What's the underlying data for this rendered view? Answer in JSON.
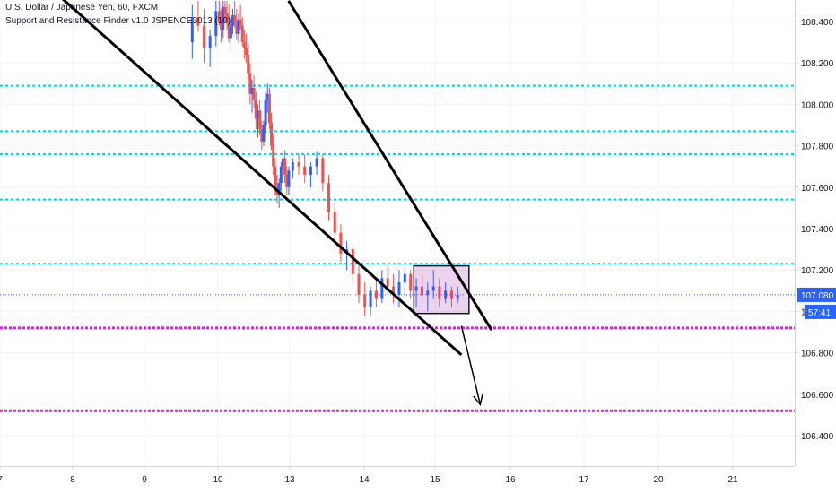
{
  "header": {
    "symbol_text": "U.S. Dollar / Japanese Yen, 60, FXCM",
    "indicator_text": "Support and Resistance Finder v1.0 JSPENCE3013 (10)"
  },
  "chart_data": {
    "type": "candlestick",
    "y_ticks": [
      "106.400",
      "106.600",
      "106.800",
      "107.000",
      "107.200",
      "107.400",
      "107.600",
      "107.800",
      "108.000",
      "108.200",
      "108.400"
    ],
    "ylim": [
      106.3,
      108.5
    ],
    "x_ticks": [
      {
        "label": "7",
        "day": 7
      },
      {
        "label": "8",
        "day": 8
      },
      {
        "label": "9",
        "day": 9
      },
      {
        "label": "10",
        "day": 10
      },
      {
        "label": "13",
        "day": 13
      },
      {
        "label": "14",
        "day": 14
      },
      {
        "label": "15",
        "day": 15
      },
      {
        "label": "16",
        "day": 16
      },
      {
        "label": "17",
        "day": 17
      },
      {
        "label": "20",
        "day": 20
      },
      {
        "label": "21",
        "day": 21
      }
    ],
    "current_price_label": "107.080",
    "countdown_label": "57:41",
    "current_price": 107.08,
    "resistance_levels": [
      108.09,
      107.87,
      107.76,
      107.54,
      107.23
    ],
    "support_levels": [
      106.92,
      106.52
    ],
    "candles_ohlc": [
      [
        108.3,
        108.48,
        108.22,
        108.42
      ],
      [
        108.42,
        108.5,
        108.35,
        108.38
      ],
      [
        108.38,
        108.46,
        108.2,
        108.27
      ],
      [
        108.27,
        108.36,
        108.18,
        108.33
      ],
      [
        108.33,
        108.5,
        108.28,
        108.45
      ],
      [
        108.45,
        108.5,
        108.38,
        108.4
      ],
      [
        108.4,
        108.46,
        108.3,
        108.36
      ],
      [
        108.36,
        108.5,
        108.32,
        108.47
      ],
      [
        108.47,
        108.5,
        108.4,
        108.44
      ],
      [
        108.44,
        108.5,
        108.36,
        108.4
      ],
      [
        108.4,
        108.48,
        108.3,
        108.32
      ],
      [
        108.32,
        108.42,
        108.26,
        108.38
      ],
      [
        108.38,
        108.46,
        108.34,
        108.43
      ],
      [
        108.43,
        108.5,
        108.37,
        108.4
      ],
      [
        108.4,
        108.46,
        108.31,
        108.34
      ],
      [
        108.34,
        108.44,
        108.3,
        108.41
      ],
      [
        108.41,
        108.48,
        108.36,
        108.38
      ],
      [
        108.38,
        108.42,
        108.28,
        108.3
      ],
      [
        108.3,
        108.36,
        108.22,
        108.27
      ],
      [
        108.27,
        108.34,
        108.2,
        108.24
      ],
      [
        108.24,
        108.3,
        108.12,
        108.15
      ],
      [
        108.15,
        108.2,
        108.0,
        108.05
      ],
      [
        108.05,
        108.12,
        107.96,
        108.08
      ],
      [
        108.08,
        108.14,
        107.98,
        108.02
      ],
      [
        108.02,
        108.06,
        107.88,
        107.93
      ],
      [
        107.93,
        108.0,
        107.84,
        107.97
      ],
      [
        107.97,
        108.02,
        107.85,
        107.88
      ],
      [
        107.88,
        107.92,
        107.78,
        107.82
      ],
      [
        107.82,
        107.92,
        107.8,
        107.9
      ],
      [
        107.9,
        108.06,
        107.86,
        108.02
      ],
      [
        108.02,
        108.1,
        107.96,
        108.05
      ],
      [
        108.05,
        108.08,
        107.88,
        107.91
      ],
      [
        107.91,
        107.96,
        107.78,
        107.8
      ],
      [
        107.8,
        107.86,
        107.66,
        107.7
      ],
      [
        107.7,
        107.74,
        107.56,
        107.6
      ],
      [
        107.6,
        107.66,
        107.52,
        107.56
      ],
      [
        107.56,
        107.64,
        107.5,
        107.62
      ],
      [
        107.62,
        107.72,
        107.58,
        107.7
      ],
      [
        107.7,
        107.78,
        107.66,
        107.74
      ],
      [
        107.74,
        107.78,
        107.62,
        107.66
      ],
      [
        107.66,
        107.7,
        107.56,
        107.6
      ],
      [
        107.6,
        107.7,
        107.56,
        107.68
      ],
      [
        107.68,
        107.74,
        107.64,
        107.72
      ],
      [
        107.72,
        107.76,
        107.66,
        107.7
      ],
      [
        107.7,
        107.76,
        107.62,
        107.66
      ],
      [
        107.66,
        107.72,
        107.6,
        107.7
      ],
      [
        107.7,
        107.77,
        107.66,
        107.74
      ],
      [
        107.74,
        107.76,
        107.58,
        107.62
      ],
      [
        107.62,
        107.66,
        107.44,
        107.48
      ],
      [
        107.48,
        107.52,
        107.34,
        107.38
      ],
      [
        107.38,
        107.42,
        107.24,
        107.28
      ],
      [
        107.28,
        107.34,
        107.2,
        107.3
      ],
      [
        107.3,
        107.32,
        107.14,
        107.18
      ],
      [
        107.18,
        107.24,
        107.04,
        107.08
      ],
      [
        107.08,
        107.14,
        106.98,
        107.02
      ],
      [
        107.02,
        107.12,
        106.98,
        107.1
      ],
      [
        107.1,
        107.16,
        107.02,
        107.06
      ],
      [
        107.06,
        107.2,
        107.04,
        107.16
      ],
      [
        107.16,
        107.22,
        107.08,
        107.12
      ],
      [
        107.12,
        107.18,
        107.04,
        107.08
      ],
      [
        107.08,
        107.2,
        107.02,
        107.14
      ],
      [
        107.14,
        107.22,
        107.08,
        107.18
      ],
      [
        107.18,
        107.2,
        107.06,
        107.1
      ],
      [
        107.1,
        107.16,
        107.02,
        107.12
      ],
      [
        107.12,
        107.18,
        107.06,
        107.08
      ],
      [
        107.08,
        107.14,
        107.0,
        107.1
      ],
      [
        107.1,
        107.2,
        107.06,
        107.12
      ],
      [
        107.12,
        107.16,
        107.02,
        107.06
      ],
      [
        107.06,
        107.14,
        107.04,
        107.1
      ],
      [
        107.1,
        107.12,
        107.02,
        107.06
      ],
      [
        107.06,
        107.12,
        107.04,
        107.08
      ]
    ],
    "drawings": {
      "lines": [
        {
          "from": [
            7.7,
            108.56
          ],
          "to": [
            15.35,
            106.79
          ]
        },
        {
          "from": [
            12.95,
            108.5
          ],
          "to": [
            15.75,
            106.91
          ]
        }
      ],
      "rectangle": {
        "from": [
          14.7,
          107.22
        ],
        "to": [
          15.45,
          106.99
        ]
      },
      "arrow": {
        "from": [
          15.35,
          106.93
        ],
        "to": [
          15.6,
          106.55
        ]
      }
    }
  }
}
